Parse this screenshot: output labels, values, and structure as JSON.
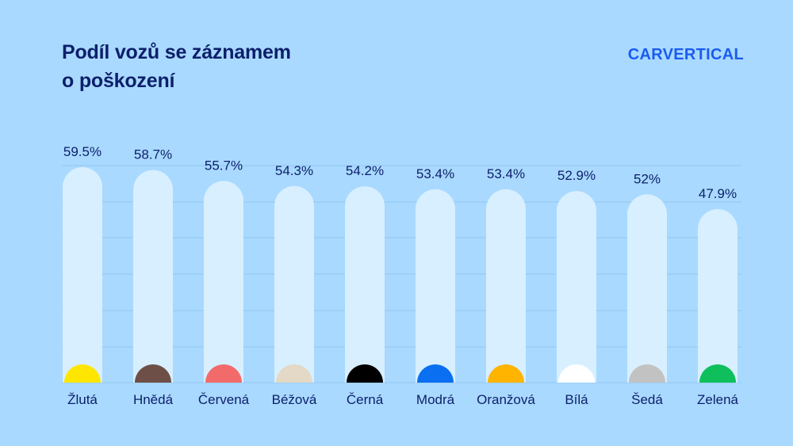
{
  "title": {
    "line1": "Podíl vozů se záznamem",
    "line2": "o poškození"
  },
  "brand": {
    "logo_text": "CARVERTICAL",
    "color": "#1a5cf0"
  },
  "colors": {
    "background": "#a9d9ff",
    "bar_track": "#d8efff",
    "text": "#0c1f6b",
    "gridline": "#93c6ef"
  },
  "chart_data": {
    "type": "bar",
    "title": "Podíl vozů se záznamem o poškození",
    "xlabel": "",
    "ylabel": "",
    "ylim": [
      0,
      59.5
    ],
    "grid": true,
    "legend": "none",
    "categories": [
      "Žlutá",
      "Hnědá",
      "Červená",
      "Béžová",
      "Černá",
      "Modrá",
      "Oranžová",
      "Bílá",
      "Šedá",
      "Zelená"
    ],
    "values": [
      59.5,
      58.7,
      55.7,
      54.3,
      54.2,
      53.4,
      53.4,
      52.9,
      52,
      47.9
    ],
    "value_labels": [
      "59.5%",
      "58.7%",
      "55.7%",
      "54.3%",
      "54.2%",
      "53.4%",
      "53.4%",
      "52.9%",
      "52%",
      "47.9%"
    ],
    "marker_colors": [
      "#ffe600",
      "#6e4f47",
      "#f26b6b",
      "#e4d8c6",
      "#000000",
      "#0a6ff0",
      "#ffb400",
      "#ffffff",
      "#c2c2c2",
      "#0fbf5c"
    ]
  }
}
